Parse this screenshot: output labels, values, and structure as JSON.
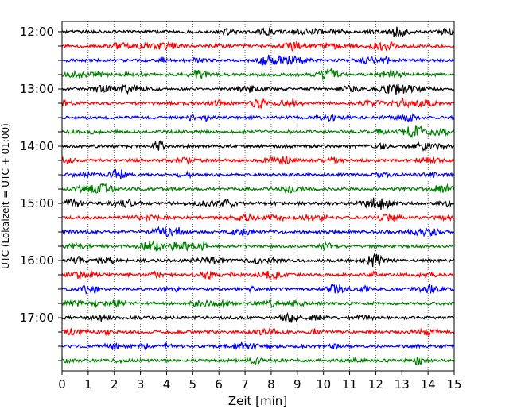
{
  "chart_data": {
    "type": "line",
    "title": "",
    "xlabel": "Zeit  [min]",
    "ylabel": "UTC (Lokalzeit = UTC + 01:00)",
    "xlim": [
      0,
      15
    ],
    "x_ticks": [
      0,
      1,
      2,
      3,
      4,
      5,
      6,
      7,
      8,
      9,
      10,
      11,
      12,
      13,
      14,
      15
    ],
    "x_tick_labels": [
      "0",
      "1",
      "2",
      "3",
      "4",
      "5",
      "6",
      "7",
      "8",
      "9",
      "10",
      "11",
      "12",
      "13",
      "14",
      "15"
    ],
    "y_tick_labels": [
      "12:00",
      "13:00",
      "14:00",
      "15:00",
      "16:00",
      "17:00"
    ],
    "grid": "vertical dotted",
    "trace_colors": [
      "#000000",
      "#ff0000",
      "#0000ff",
      "#008000"
    ],
    "series": [
      {
        "start": "12:00",
        "offset": 0,
        "color": "#000000"
      },
      {
        "start": "12:15",
        "offset": 1,
        "color": "#ff0000"
      },
      {
        "start": "12:30",
        "offset": 2,
        "color": "#0000ff"
      },
      {
        "start": "12:45",
        "offset": 3,
        "color": "#008000"
      },
      {
        "start": "13:00",
        "offset": 4,
        "color": "#000000"
      },
      {
        "start": "13:15",
        "offset": 5,
        "color": "#ff0000"
      },
      {
        "start": "13:30",
        "offset": 6,
        "color": "#0000ff"
      },
      {
        "start": "13:45",
        "offset": 7,
        "color": "#008000"
      },
      {
        "start": "14:00",
        "offset": 8,
        "color": "#000000"
      },
      {
        "start": "14:15",
        "offset": 9,
        "color": "#ff0000"
      },
      {
        "start": "14:30",
        "offset": 10,
        "color": "#0000ff"
      },
      {
        "start": "14:45",
        "offset": 11,
        "color": "#008000"
      },
      {
        "start": "15:00",
        "offset": 12,
        "color": "#000000"
      },
      {
        "start": "15:15",
        "offset": 13,
        "color": "#ff0000"
      },
      {
        "start": "15:30",
        "offset": 14,
        "color": "#0000ff"
      },
      {
        "start": "15:45",
        "offset": 15,
        "color": "#008000"
      },
      {
        "start": "16:00",
        "offset": 16,
        "color": "#000000"
      },
      {
        "start": "16:15",
        "offset": 17,
        "color": "#ff0000"
      },
      {
        "start": "16:30",
        "offset": 18,
        "color": "#0000ff"
      },
      {
        "start": "16:45",
        "offset": 19,
        "color": "#008000"
      },
      {
        "start": "17:00",
        "offset": 20,
        "color": "#000000"
      },
      {
        "start": "17:15",
        "offset": 21,
        "color": "#ff0000"
      },
      {
        "start": "17:30",
        "offset": 22,
        "color": "#0000ff"
      },
      {
        "start": "17:45",
        "offset": 23,
        "color": "#008000"
      }
    ]
  }
}
